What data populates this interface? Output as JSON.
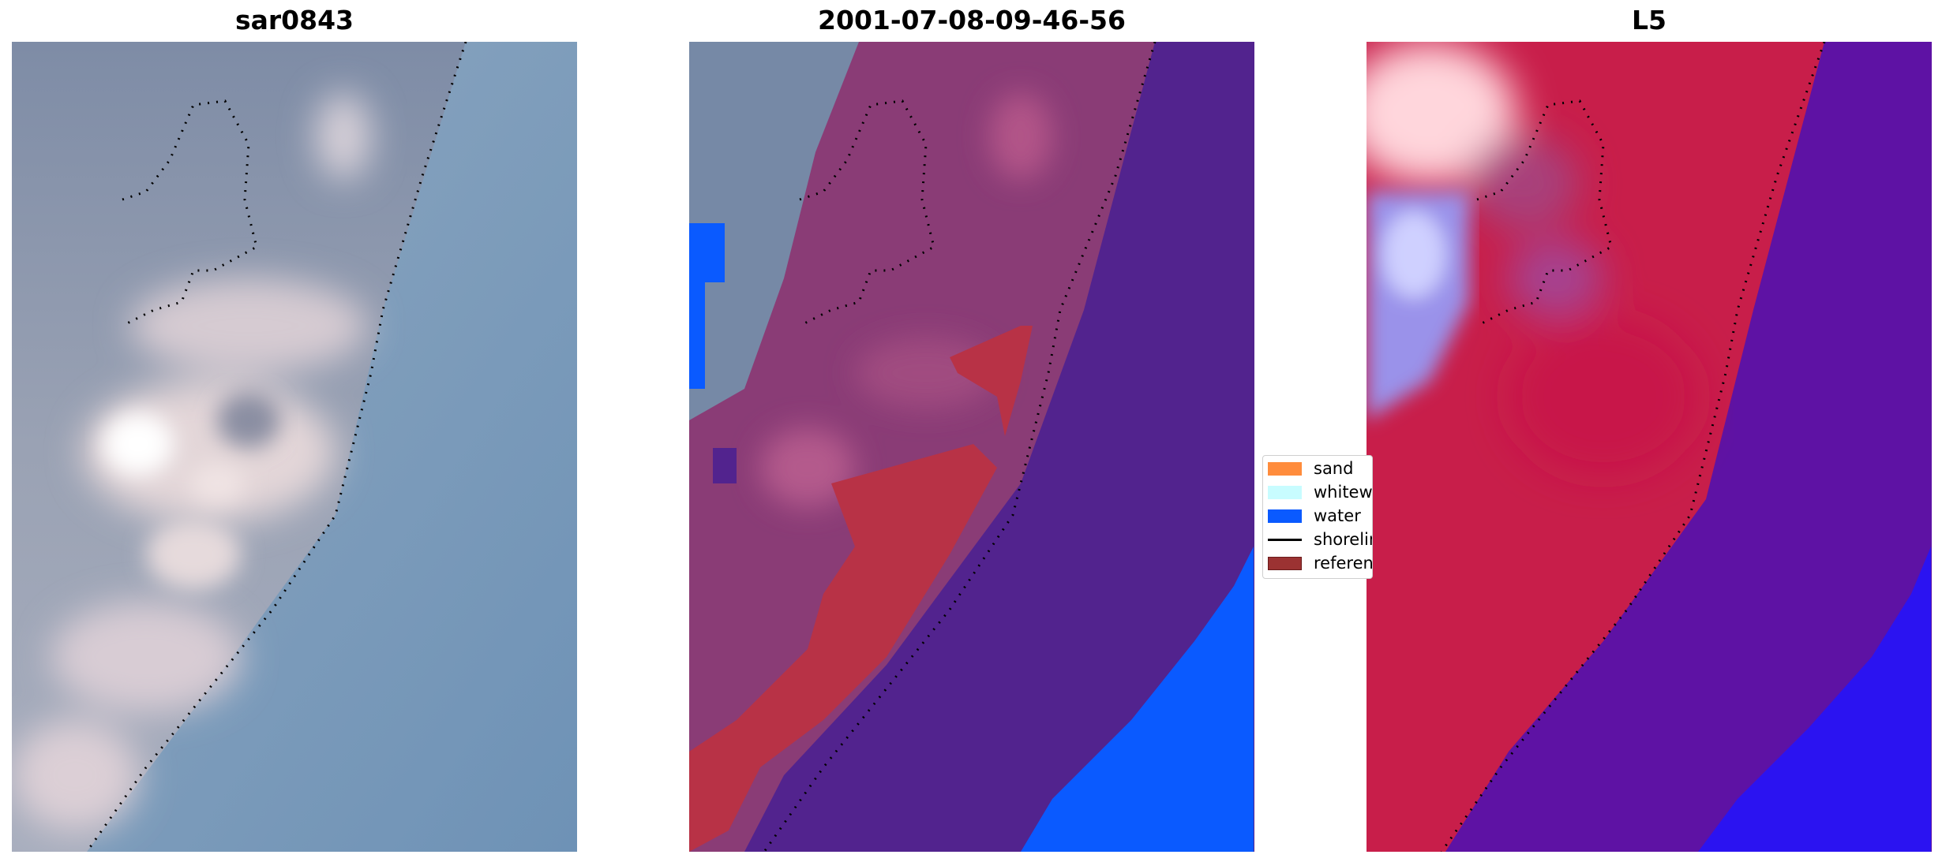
{
  "panels": [
    {
      "title": "sar0843"
    },
    {
      "title": "2001-07-08-09-46-56"
    },
    {
      "title": "L5"
    }
  ],
  "legend": {
    "items": [
      {
        "label": "sand",
        "color": "#ff8c3c"
      },
      {
        "label": "whitewater",
        "color": "#c8fcff"
      },
      {
        "label": "water",
        "color": "#0a5aff"
      },
      {
        "label": "shoreline",
        "color": "#000000"
      },
      {
        "label": "reference",
        "color": "#9b3232"
      }
    ]
  },
  "colors": {
    "rgb_background": "#88a0b8",
    "rgb_sand": "#e8dcd8",
    "classified_sand_overlay": "#7a3068",
    "classified_water": "#52238e",
    "classified_reference": "#b83246",
    "index_land": "#c81e4a",
    "index_water": "#5a14a0",
    "index_blue": "#1a14ff"
  }
}
